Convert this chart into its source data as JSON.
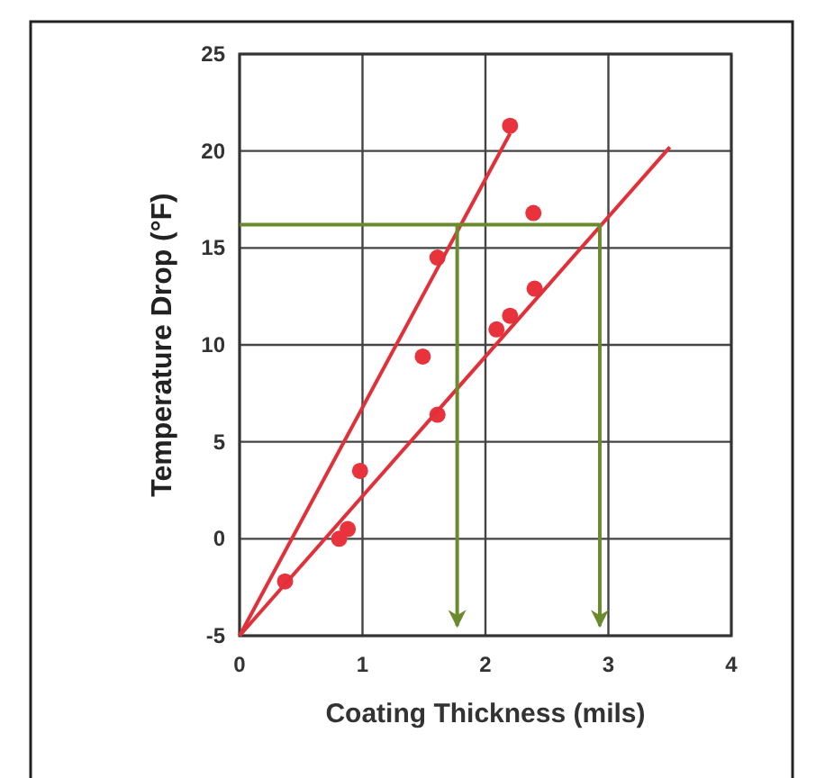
{
  "chart_data": {
    "type": "scatter",
    "xlabel": "Coating Thickness (mils)",
    "ylabel": "Temperature Drop (°F)",
    "xlim": [
      0,
      4
    ],
    "ylim": [
      -5,
      25
    ],
    "xticks": [
      0,
      1,
      2,
      3,
      4
    ],
    "yticks": [
      -5,
      0,
      5,
      10,
      15,
      20,
      25
    ],
    "grid": true,
    "series": [
      {
        "color": "#e8323c",
        "marker": "circle",
        "x": [
          0.37,
          0.81,
          0.88,
          0.98,
          1.49,
          1.61,
          1.61,
          2.09,
          2.2,
          2.2,
          2.39,
          2.4
        ],
        "values": [
          -2.2,
          0.0,
          0.5,
          3.5,
          9.4,
          14.5,
          6.4,
          10.8,
          11.5,
          21.3,
          16.8,
          12.9
        ]
      },
      {
        "type": "line",
        "color": "#e0303a",
        "marker": "none",
        "x": [
          0,
          2.2
        ],
        "values": [
          -5,
          20.9
        ]
      },
      {
        "type": "line",
        "color": "#e0303a",
        "marker": "none",
        "x": [
          0,
          3.5
        ],
        "values": [
          -5,
          20.2
        ]
      },
      {
        "type": "line",
        "color": "#6b8a2e",
        "marker": "none",
        "x": [
          0,
          1.77,
          1.77
        ],
        "values": [
          16.2,
          16.2,
          -4.5
        ]
      },
      {
        "type": "line",
        "color": "#6b8a2e",
        "marker": "none",
        "x": [
          1.77,
          2.93,
          2.93
        ],
        "values": [
          16.2,
          16.2,
          -4.5
        ]
      }
    ]
  }
}
